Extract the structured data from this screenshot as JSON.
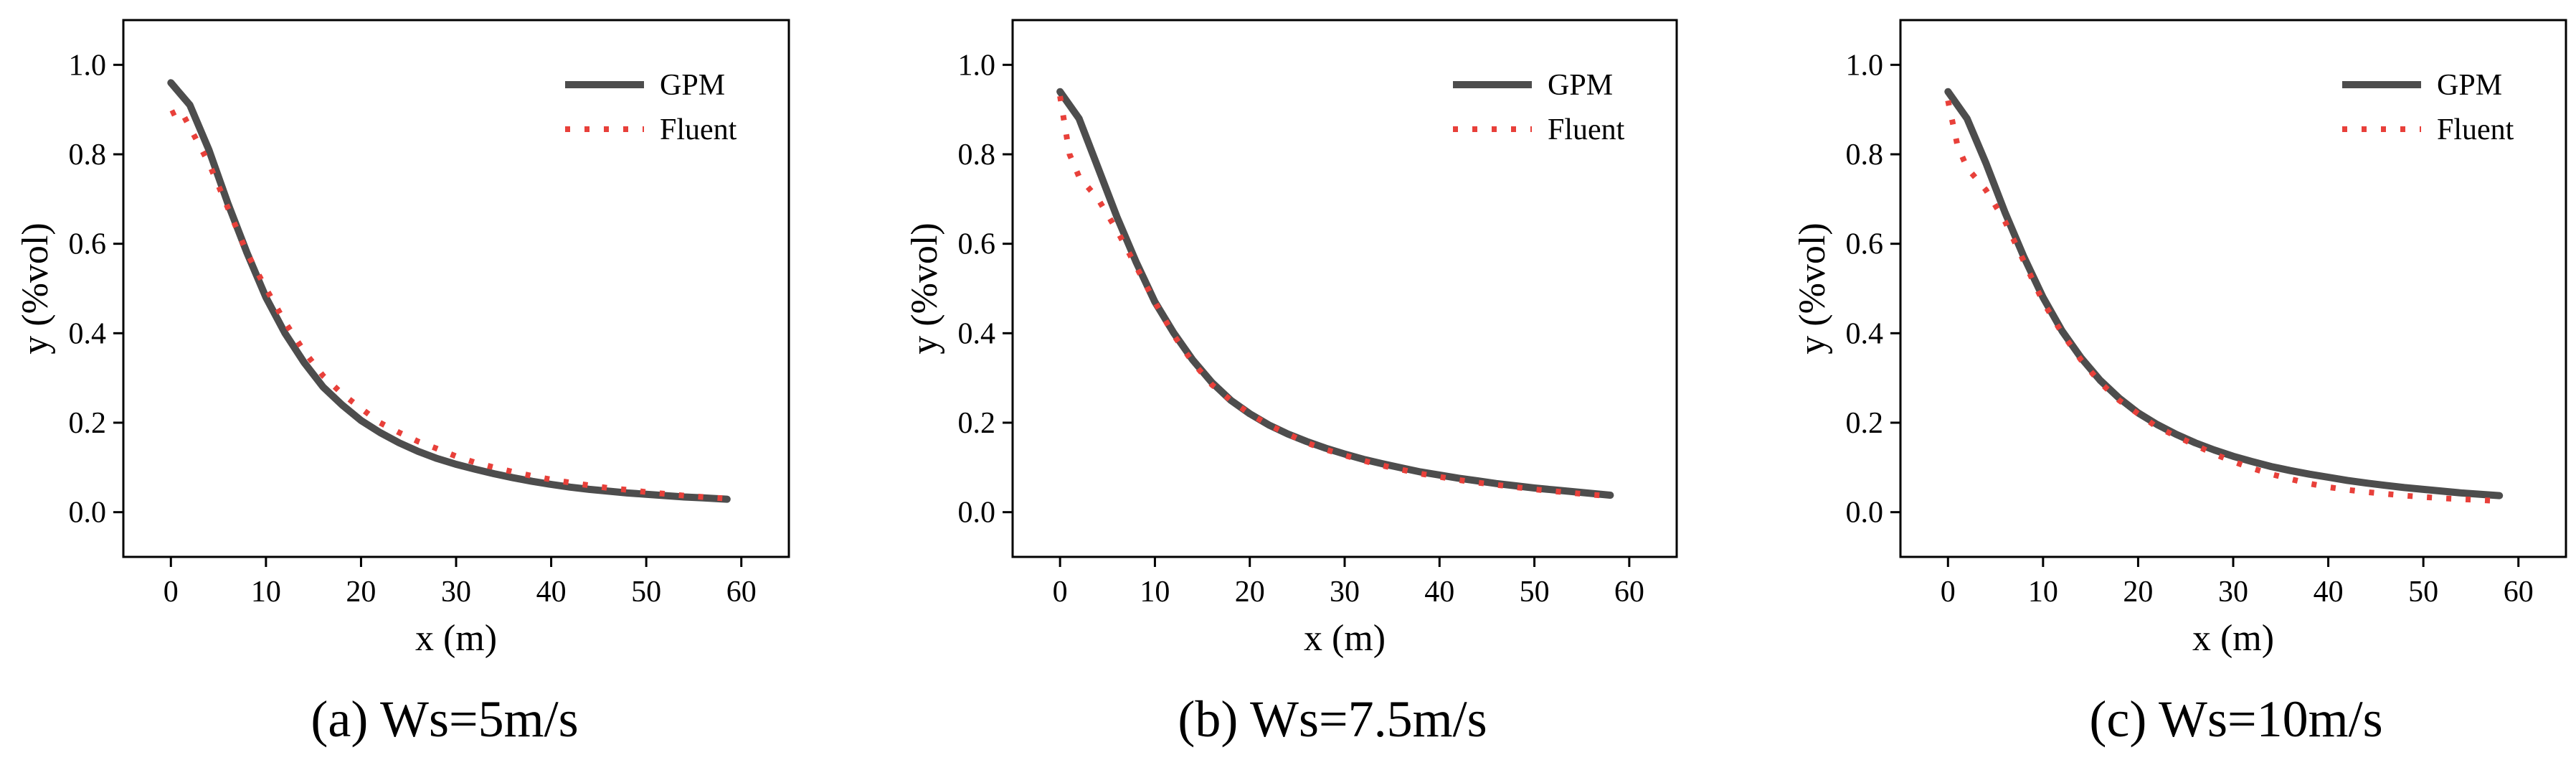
{
  "figure": {
    "colors": {
      "gpm": "#4d4d4d",
      "fluent": "#e8403a",
      "axis": "#000000"
    }
  },
  "chart_data": [
    {
      "type": "line",
      "caption": "(a) Ws=5m/s",
      "xlabel": "x (m)",
      "ylabel": "y (%vol)",
      "xlim": [
        -5,
        65
      ],
      "ylim": [
        -0.1,
        1.1
      ],
      "xticks": [
        "0",
        "10",
        "20",
        "30",
        "40",
        "50",
        "60"
      ],
      "yticks": [
        "0.0",
        "0.2",
        "0.4",
        "0.6",
        "0.8",
        "1.0"
      ],
      "legend": [
        "GPM",
        "Fluent"
      ],
      "legend_position": "top-right",
      "series": [
        {
          "name": "GPM",
          "style": "solid",
          "x": [
            0,
            2,
            4,
            6,
            8,
            10,
            12,
            14,
            16,
            18,
            20,
            22,
            24,
            26,
            28,
            30,
            32,
            34,
            36,
            38,
            40,
            42,
            44,
            46,
            48,
            50,
            52,
            54,
            56,
            58.5
          ],
          "y": [
            0.96,
            0.91,
            0.81,
            0.69,
            0.58,
            0.48,
            0.4,
            0.335,
            0.28,
            0.24,
            0.205,
            0.178,
            0.155,
            0.136,
            0.12,
            0.107,
            0.096,
            0.086,
            0.077,
            0.069,
            0.062,
            0.056,
            0.051,
            0.047,
            0.043,
            0.04,
            0.037,
            0.034,
            0.032,
            0.029
          ]
        },
        {
          "name": "Fluent",
          "style": "dotted",
          "x": [
            0,
            1,
            2,
            4,
            6,
            8,
            10,
            12,
            14,
            16,
            18,
            20,
            22,
            24,
            26,
            28,
            30,
            32,
            34,
            36,
            38,
            40,
            42,
            44,
            46,
            48,
            50,
            52,
            54,
            56,
            58
          ],
          "y": [
            0.89,
            0.9,
            0.86,
            0.78,
            0.68,
            0.58,
            0.5,
            0.425,
            0.36,
            0.305,
            0.265,
            0.232,
            0.2,
            0.178,
            0.158,
            0.142,
            0.125,
            0.111,
            0.1,
            0.09,
            0.081,
            0.073,
            0.066,
            0.06,
            0.054,
            0.05,
            0.045,
            0.041,
            0.037,
            0.034,
            0.031
          ]
        }
      ]
    },
    {
      "type": "line",
      "caption": "(b) Ws=7.5m/s",
      "xlabel": "x (m)",
      "ylabel": "y (%vol)",
      "xlim": [
        -5,
        65
      ],
      "ylim": [
        -0.1,
        1.1
      ],
      "xticks": [
        "0",
        "10",
        "20",
        "30",
        "40",
        "50",
        "60"
      ],
      "yticks": [
        "0.0",
        "0.2",
        "0.4",
        "0.6",
        "0.8",
        "1.0"
      ],
      "legend": [
        "GPM",
        "Fluent"
      ],
      "legend_position": "top-right",
      "series": [
        {
          "name": "GPM",
          "style": "solid",
          "x": [
            0,
            2,
            4,
            6,
            8,
            10,
            12,
            14,
            16,
            18,
            20,
            22,
            24,
            26,
            28,
            30,
            32,
            34,
            36,
            38,
            40,
            42,
            44,
            46,
            48,
            50,
            52,
            54,
            56,
            58
          ],
          "y": [
            0.94,
            0.88,
            0.77,
            0.66,
            0.56,
            0.47,
            0.4,
            0.34,
            0.29,
            0.25,
            0.22,
            0.195,
            0.175,
            0.158,
            0.143,
            0.13,
            0.118,
            0.108,
            0.099,
            0.09,
            0.083,
            0.076,
            0.07,
            0.064,
            0.059,
            0.054,
            0.05,
            0.046,
            0.042,
            0.038
          ]
        },
        {
          "name": "Fluent",
          "style": "dotted",
          "x": [
            0,
            1,
            2,
            4,
            6,
            8,
            10,
            12,
            14,
            16,
            18,
            20,
            22,
            24,
            26,
            28,
            30,
            32,
            34,
            36,
            38,
            40,
            42,
            44,
            46,
            48,
            50,
            52,
            54,
            56,
            58
          ],
          "y": [
            0.93,
            0.8,
            0.75,
            0.7,
            0.63,
            0.55,
            0.47,
            0.395,
            0.335,
            0.285,
            0.25,
            0.22,
            0.195,
            0.175,
            0.155,
            0.14,
            0.127,
            0.115,
            0.104,
            0.095,
            0.086,
            0.079,
            0.072,
            0.066,
            0.061,
            0.056,
            0.051,
            0.047,
            0.043,
            0.039,
            0.036
          ]
        }
      ]
    },
    {
      "type": "line",
      "caption": "(c) Ws=10m/s",
      "xlabel": "x (m)",
      "ylabel": "y (%vol)",
      "xlim": [
        -5,
        65
      ],
      "ylim": [
        -0.1,
        1.1
      ],
      "xticks": [
        "0",
        "10",
        "20",
        "30",
        "40",
        "50",
        "60"
      ],
      "yticks": [
        "0.0",
        "0.2",
        "0.4",
        "0.6",
        "0.8",
        "1.0"
      ],
      "legend": [
        "GPM",
        "Fluent"
      ],
      "legend_position": "top-right",
      "series": [
        {
          "name": "GPM",
          "style": "solid",
          "x": [
            0,
            2,
            4,
            6,
            8,
            10,
            12,
            14,
            16,
            18,
            20,
            22,
            24,
            26,
            28,
            30,
            32,
            34,
            36,
            38,
            40,
            42,
            44,
            46,
            48,
            50,
            52,
            54,
            56,
            58
          ],
          "y": [
            0.94,
            0.88,
            0.78,
            0.67,
            0.57,
            0.48,
            0.405,
            0.345,
            0.295,
            0.255,
            0.222,
            0.196,
            0.174,
            0.155,
            0.139,
            0.125,
            0.113,
            0.102,
            0.093,
            0.085,
            0.078,
            0.071,
            0.065,
            0.06,
            0.055,
            0.051,
            0.047,
            0.043,
            0.04,
            0.037
          ]
        },
        {
          "name": "Fluent",
          "style": "dotted",
          "x": [
            0,
            1,
            2,
            4,
            6,
            8,
            10,
            12,
            14,
            16,
            18,
            20,
            22,
            24,
            26,
            28,
            30,
            32,
            34,
            36,
            38,
            40,
            42,
            44,
            46,
            48,
            50,
            52,
            54,
            56,
            58
          ],
          "y": [
            0.92,
            0.82,
            0.77,
            0.72,
            0.65,
            0.56,
            0.47,
            0.4,
            0.34,
            0.29,
            0.25,
            0.22,
            0.19,
            0.17,
            0.15,
            0.13,
            0.113,
            0.098,
            0.085,
            0.074,
            0.064,
            0.056,
            0.05,
            0.045,
            0.041,
            0.037,
            0.034,
            0.031,
            0.029,
            0.027,
            0.025
          ]
        }
      ]
    }
  ]
}
